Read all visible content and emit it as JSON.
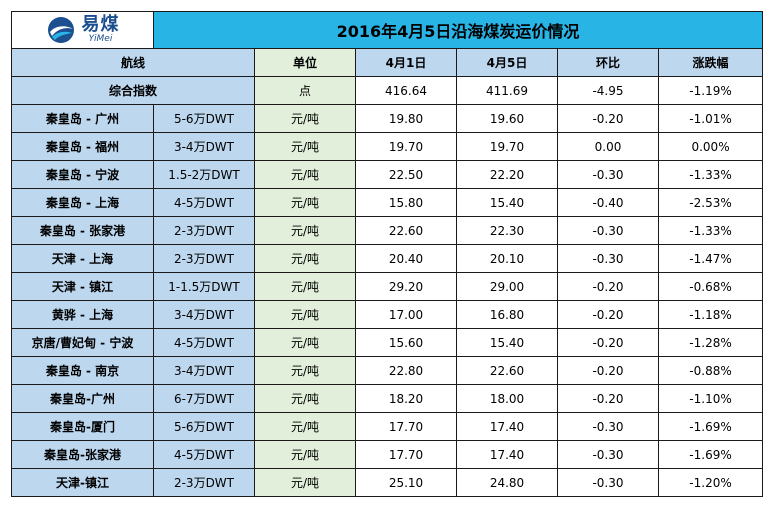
{
  "logo": {
    "text_cn": "易煤",
    "text_en": "YiMei",
    "icon": "yimei-globe-logo-icon"
  },
  "title": "2016年4月5日沿海煤炭运价情况",
  "headers": {
    "route": "航线",
    "unit": "单位",
    "apr1": "4月1日",
    "apr5": "4月5日",
    "change": "环比",
    "pct": "涨跌幅"
  },
  "index_row": {
    "label": "综合指数",
    "unit": "点",
    "apr1": "416.64",
    "apr5": "411.69",
    "change": "-4.95",
    "pct": "-1.19%"
  },
  "rows": [
    {
      "route": "秦皇岛 - 广州",
      "tonnage": "5-6万DWT",
      "unit": "元/吨",
      "apr1": "19.80",
      "apr5": "19.60",
      "change": "-0.20",
      "pct": "-1.01%"
    },
    {
      "route": "秦皇岛 - 福州",
      "tonnage": "3-4万DWT",
      "unit": "元/吨",
      "apr1": "19.70",
      "apr5": "19.70",
      "change": "0.00",
      "pct": "0.00%"
    },
    {
      "route": "秦皇岛 - 宁波",
      "tonnage": "1.5-2万DWT",
      "unit": "元/吨",
      "apr1": "22.50",
      "apr5": "22.20",
      "change": "-0.30",
      "pct": "-1.33%"
    },
    {
      "route": "秦皇岛 - 上海",
      "tonnage": "4-5万DWT",
      "unit": "元/吨",
      "apr1": "15.80",
      "apr5": "15.40",
      "change": "-0.40",
      "pct": "-2.53%"
    },
    {
      "route": "秦皇岛 - 张家港",
      "tonnage": "2-3万DWT",
      "unit": "元/吨",
      "apr1": "22.60",
      "apr5": "22.30",
      "change": "-0.30",
      "pct": "-1.33%"
    },
    {
      "route": "天津 - 上海",
      "tonnage": "2-3万DWT",
      "unit": "元/吨",
      "apr1": "20.40",
      "apr5": "20.10",
      "change": "-0.30",
      "pct": "-1.47%"
    },
    {
      "route": "天津 - 镇江",
      "tonnage": "1-1.5万DWT",
      "unit": "元/吨",
      "apr1": "29.20",
      "apr5": "29.00",
      "change": "-0.20",
      "pct": "-0.68%"
    },
    {
      "route": "黄骅 - 上海",
      "tonnage": "3-4万DWT",
      "unit": "元/吨",
      "apr1": "17.00",
      "apr5": "16.80",
      "change": "-0.20",
      "pct": "-1.18%"
    },
    {
      "route": "京唐/曹妃甸 - 宁波",
      "tonnage": "4-5万DWT",
      "unit": "元/吨",
      "apr1": "15.60",
      "apr5": "15.40",
      "change": "-0.20",
      "pct": "-1.28%"
    },
    {
      "route": "秦皇岛 - 南京",
      "tonnage": "3-4万DWT",
      "unit": "元/吨",
      "apr1": "22.80",
      "apr5": "22.60",
      "change": "-0.20",
      "pct": "-0.88%"
    },
    {
      "route": "秦皇岛-广州",
      "tonnage": "6-7万DWT",
      "unit": "元/吨",
      "apr1": "18.20",
      "apr5": "18.00",
      "change": "-0.20",
      "pct": "-1.10%"
    },
    {
      "route": "秦皇岛-厦门",
      "tonnage": "5-6万DWT",
      "unit": "元/吨",
      "apr1": "17.70",
      "apr5": "17.40",
      "change": "-0.30",
      "pct": "-1.69%"
    },
    {
      "route": "秦皇岛-张家港",
      "tonnage": "4-5万DWT",
      "unit": "元/吨",
      "apr1": "17.70",
      "apr5": "17.40",
      "change": "-0.30",
      "pct": "-1.69%"
    },
    {
      "route": "天津-镇江",
      "tonnage": "2-3万DWT",
      "unit": "元/吨",
      "apr1": "25.10",
      "apr5": "24.80",
      "change": "-0.30",
      "pct": "-1.20%"
    }
  ]
}
